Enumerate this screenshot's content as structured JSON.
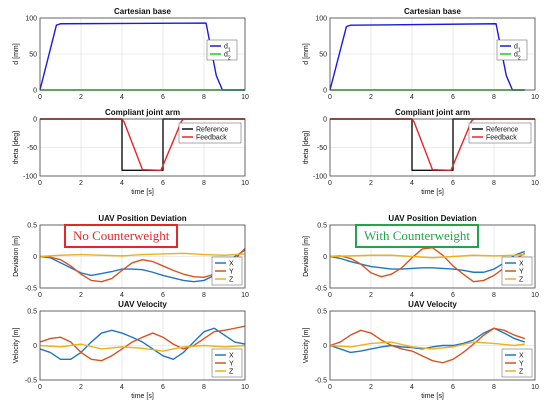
{
  "chart_data": [
    {
      "type": "line",
      "title": "Cartesian base",
      "ylabel": "d [mm]",
      "xlabel": "",
      "xlim": [
        0,
        10
      ],
      "ylim": [
        0,
        100
      ],
      "xticks": [
        "0",
        "2",
        "4",
        "6",
        "8",
        "10"
      ],
      "yticks": [
        "0",
        "50",
        "100"
      ],
      "grid": true,
      "legend": "top-right",
      "series": [
        {
          "name": "d1",
          "color": "#1b1bdc",
          "x": [
            0,
            0.8,
            1.0,
            8.1,
            8.6,
            8.9,
            10
          ],
          "y": [
            0,
            90,
            92,
            93,
            20,
            0,
            0
          ]
        },
        {
          "name": "d2",
          "color": "#19d119",
          "x": [
            0,
            10
          ],
          "y": [
            0,
            0
          ]
        }
      ]
    },
    {
      "type": "line",
      "title": "Compliant joint arm",
      "ylabel": "theta [deg]",
      "xlabel": "time [s]",
      "xlim": [
        0,
        10
      ],
      "ylim": [
        -100,
        0
      ],
      "xticks": [
        "0",
        "2",
        "4",
        "6",
        "8",
        "10"
      ],
      "yticks": [
        "-100",
        "-50",
        "0"
      ],
      "grid": true,
      "legend": "right",
      "series": [
        {
          "name": "Reference",
          "color": "#111111",
          "x": [
            0,
            4,
            4,
            6,
            6,
            10
          ],
          "y": [
            0,
            0,
            -90,
            -90,
            0,
            0
          ]
        },
        {
          "name": "Feedback",
          "color": "#e8262a",
          "x": [
            0,
            4,
            4.1,
            5.0,
            5.9,
            6.9,
            7.0,
            10
          ],
          "y": [
            0,
            0,
            -5,
            -89,
            -90,
            -4,
            0,
            0
          ]
        }
      ]
    },
    {
      "type": "line",
      "title": "UAV Position Deviation",
      "ylabel": "Deviation [m]",
      "xlabel": "",
      "xlim": [
        0,
        10
      ],
      "ylim": [
        -0.5,
        0.5
      ],
      "xticks": [
        "0",
        "2",
        "4",
        "6",
        "8",
        "10"
      ],
      "yticks": [
        "-0.5",
        "0",
        "0.5"
      ],
      "grid": true,
      "legend": "bottom-right",
      "series": [
        {
          "name": "X",
          "color": "#1f77c4",
          "x": [
            0,
            0.5,
            1,
            1.5,
            2,
            2.5,
            3,
            3.5,
            4,
            4.5,
            5,
            5.5,
            6,
            6.5,
            7,
            7.5,
            8,
            8.5,
            9,
            9.5,
            10
          ],
          "y": [
            0,
            -0.02,
            -0.1,
            -0.18,
            -0.26,
            -0.3,
            -0.27,
            -0.24,
            -0.2,
            -0.2,
            -0.21,
            -0.25,
            -0.3,
            -0.34,
            -0.38,
            -0.4,
            -0.38,
            -0.3,
            -0.15,
            0.0,
            0.1
          ]
        },
        {
          "name": "Y",
          "color": "#d9531e",
          "x": [
            0,
            0.5,
            1,
            1.5,
            2,
            2.5,
            3,
            3.5,
            4,
            4.5,
            5,
            5.5,
            6,
            6.5,
            7,
            7.5,
            8,
            8.5,
            9,
            9.5,
            10
          ],
          "y": [
            0,
            -0.01,
            -0.05,
            -0.15,
            -0.28,
            -0.38,
            -0.4,
            -0.35,
            -0.22,
            -0.1,
            -0.05,
            -0.08,
            -0.15,
            -0.22,
            -0.28,
            -0.32,
            -0.33,
            -0.28,
            -0.18,
            -0.05,
            0.13
          ]
        },
        {
          "name": "Z",
          "color": "#edb120",
          "x": [
            0,
            1,
            2,
            3,
            4,
            5,
            6,
            7,
            8,
            9,
            10
          ],
          "y": [
            0,
            0.02,
            0.03,
            0.02,
            0.01,
            0.03,
            0.04,
            0.05,
            0.03,
            0.02,
            0.04
          ]
        }
      ]
    },
    {
      "type": "line",
      "title": "UAV Velocity",
      "ylabel": "Velocity [m]",
      "xlabel": "time [s]",
      "xlim": [
        0,
        10
      ],
      "ylim": [
        -0.5,
        0.5
      ],
      "xticks": [
        "0",
        "2",
        "4",
        "6",
        "8",
        "10"
      ],
      "yticks": [
        "-0.5",
        "0",
        "0.5"
      ],
      "grid": true,
      "legend": "bottom-right",
      "series": [
        {
          "name": "X",
          "color": "#1f77c4",
          "x": [
            0,
            0.5,
            1,
            1.5,
            2,
            2.5,
            3,
            3.5,
            4,
            4.5,
            5,
            5.5,
            6,
            6.5,
            7,
            7.5,
            8,
            8.5,
            9,
            9.5,
            10
          ],
          "y": [
            -0.05,
            -0.1,
            -0.2,
            -0.2,
            -0.1,
            0.05,
            0.18,
            0.22,
            0.18,
            0.12,
            0.05,
            -0.05,
            -0.15,
            -0.2,
            -0.1,
            0.05,
            0.2,
            0.25,
            0.15,
            0.05,
            0.02
          ]
        },
        {
          "name": "Y",
          "color": "#d9531e",
          "x": [
            0,
            0.5,
            1,
            1.5,
            2,
            2.5,
            3,
            3.5,
            4,
            4.5,
            5,
            5.5,
            6,
            6.5,
            7,
            7.5,
            8,
            8.5,
            9,
            9.5,
            10
          ],
          "y": [
            0.05,
            0.1,
            0.12,
            0.05,
            -0.1,
            -0.2,
            -0.22,
            -0.15,
            -0.05,
            0.05,
            0.12,
            0.18,
            0.12,
            0.02,
            -0.05,
            0.0,
            0.1,
            0.2,
            0.22,
            0.25,
            0.28
          ]
        },
        {
          "name": "Z",
          "color": "#edb120",
          "x": [
            0,
            1,
            2,
            3,
            4,
            5,
            6,
            7,
            8,
            9,
            10
          ],
          "y": [
            0,
            -0.02,
            0.02,
            -0.05,
            -0.02,
            -0.04,
            -0.08,
            -0.02,
            0.0,
            -0.02,
            0.0
          ]
        }
      ]
    },
    {
      "type": "line",
      "title": "Cartesian base",
      "ylabel": "d [mm]",
      "xlabel": "",
      "xlim": [
        0,
        10
      ],
      "ylim": [
        0,
        100
      ],
      "xticks": [
        "0",
        "2",
        "4",
        "6",
        "8",
        "10"
      ],
      "yticks": [
        "0",
        "50",
        "100"
      ],
      "grid": true,
      "legend": "top-right",
      "series": [
        {
          "name": "d1",
          "color": "#1b1bdc",
          "x": [
            0,
            0.8,
            1.0,
            8.1,
            8.6,
            8.9,
            9.5
          ],
          "y": [
            0,
            88,
            90,
            92,
            20,
            0,
            0
          ]
        },
        {
          "name": "d2",
          "color": "#19d119",
          "x": [
            0,
            9.5
          ],
          "y": [
            0,
            0
          ]
        }
      ]
    },
    {
      "type": "line",
      "title": "Compliant joint arm",
      "ylabel": "theta [deg]",
      "xlabel": "time [s]",
      "xlim": [
        0,
        10
      ],
      "ylim": [
        -100,
        0
      ],
      "xticks": [
        "0",
        "2",
        "4",
        "6",
        "8",
        "10"
      ],
      "yticks": [
        "-100",
        "-50",
        "0"
      ],
      "grid": true,
      "legend": "right",
      "series": [
        {
          "name": "Reference",
          "color": "#111111",
          "x": [
            0,
            4,
            4,
            6,
            6,
            10
          ],
          "y": [
            0,
            0,
            -90,
            -90,
            0,
            0
          ]
        },
        {
          "name": "Feedback",
          "color": "#e8262a",
          "x": [
            0,
            4,
            4.1,
            5.0,
            5.9,
            6.9,
            7.0,
            10
          ],
          "y": [
            0,
            0,
            -5,
            -89,
            -90,
            -4,
            0,
            0
          ]
        }
      ]
    },
    {
      "type": "line",
      "title": "UAV Position Deviation",
      "ylabel": "Deviation [m]",
      "xlabel": "",
      "xlim": [
        0,
        10
      ],
      "ylim": [
        -0.5,
        0.5
      ],
      "xticks": [
        "0",
        "2",
        "4",
        "6",
        "8",
        "10"
      ],
      "yticks": [
        "-0.5",
        "0",
        "0.5"
      ],
      "grid": true,
      "legend": "bottom-right",
      "series": [
        {
          "name": "X",
          "color": "#1f77c4",
          "x": [
            0,
            0.5,
            1,
            1.5,
            2,
            2.5,
            3,
            3.5,
            4,
            4.5,
            5,
            5.5,
            6,
            6.5,
            7,
            7.5,
            8,
            8.5,
            9,
            9.5
          ],
          "y": [
            0,
            -0.03,
            -0.08,
            -0.12,
            -0.16,
            -0.18,
            -0.2,
            -0.2,
            -0.19,
            -0.18,
            -0.18,
            -0.19,
            -0.2,
            -0.22,
            -0.25,
            -0.25,
            -0.2,
            -0.1,
            0.02,
            0.08
          ]
        },
        {
          "name": "Y",
          "color": "#d9531e",
          "x": [
            0,
            0.5,
            1,
            1.5,
            2,
            2.5,
            3,
            3.5,
            4,
            4.5,
            5,
            5.5,
            6,
            6.5,
            7,
            7.5,
            8,
            8.5,
            9,
            9.5
          ],
          "y": [
            0,
            0.01,
            -0.03,
            -0.12,
            -0.26,
            -0.32,
            -0.28,
            -0.18,
            -0.02,
            0.12,
            0.14,
            0.02,
            -0.15,
            -0.28,
            -0.4,
            -0.38,
            -0.3,
            -0.18,
            -0.05,
            0.05
          ]
        },
        {
          "name": "Z",
          "color": "#edb120",
          "x": [
            0,
            1,
            2,
            3,
            4,
            5,
            6,
            7,
            8,
            9,
            9.5
          ],
          "y": [
            0,
            0.01,
            0.02,
            0.02,
            0.0,
            -0.02,
            0.0,
            0.02,
            0.01,
            0.02,
            0.03
          ]
        }
      ]
    },
    {
      "type": "line",
      "title": "UAV Velocity",
      "ylabel": "Velocity [m]",
      "xlabel": "time [s]",
      "xlim": [
        0,
        10
      ],
      "ylim": [
        -0.5,
        0.5
      ],
      "xticks": [
        "0",
        "2",
        "4",
        "6",
        "8",
        "10"
      ],
      "yticks": [
        "-0.5",
        "0",
        "0.5"
      ],
      "grid": true,
      "legend": "bottom-right",
      "series": [
        {
          "name": "X",
          "color": "#1f77c4",
          "x": [
            0,
            0.5,
            1,
            1.5,
            2,
            2.5,
            3,
            3.5,
            4,
            4.5,
            5,
            5.5,
            6,
            6.5,
            7,
            7.5,
            8,
            8.5,
            9,
            9.5
          ],
          "y": [
            0,
            -0.05,
            -0.1,
            -0.08,
            -0.05,
            -0.02,
            0.0,
            -0.02,
            -0.03,
            -0.05,
            -0.02,
            0.0,
            0.0,
            0.03,
            0.08,
            0.18,
            0.25,
            0.18,
            0.1,
            0.05
          ]
        },
        {
          "name": "Y",
          "color": "#d9531e",
          "x": [
            0,
            0.5,
            1,
            1.5,
            2,
            2.5,
            3,
            3.5,
            4,
            4.5,
            5,
            5.5,
            6,
            6.5,
            7,
            7.5,
            8,
            8.5,
            9,
            9.5
          ],
          "y": [
            0,
            0.05,
            0.15,
            0.22,
            0.18,
            0.08,
            0.0,
            -0.05,
            -0.08,
            -0.15,
            -0.22,
            -0.25,
            -0.2,
            -0.1,
            0.02,
            0.15,
            0.25,
            0.22,
            0.15,
            0.1
          ]
        },
        {
          "name": "Z",
          "color": "#edb120",
          "x": [
            0,
            1,
            2,
            3,
            4,
            5,
            6,
            7,
            8,
            9,
            9.5
          ],
          "y": [
            0,
            -0.02,
            0.03,
            0.05,
            -0.02,
            -0.05,
            -0.02,
            0.05,
            0.03,
            0.0,
            0.02
          ]
        }
      ]
    }
  ],
  "annotations": {
    "left": {
      "text": "No Counterweight",
      "color": "#e8262a"
    },
    "right": {
      "text": "With Counterweight",
      "color": "#21a44a"
    }
  }
}
